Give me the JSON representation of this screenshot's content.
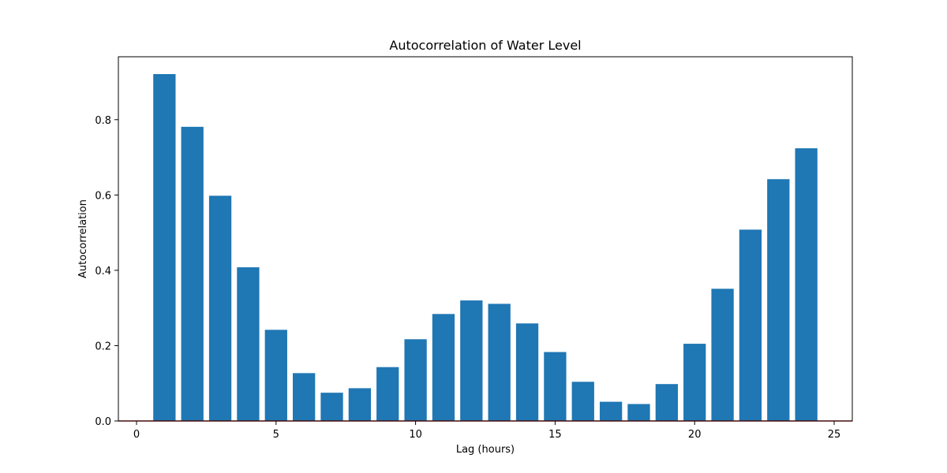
{
  "chart_data": {
    "type": "bar",
    "title": "Autocorrelation of Water Level",
    "xlabel": "Lag (hours)",
    "ylabel": "Autocorrelation",
    "x": [
      1,
      2,
      3,
      4,
      5,
      6,
      7,
      8,
      9,
      10,
      11,
      12,
      13,
      14,
      15,
      16,
      17,
      18,
      19,
      20,
      21,
      22,
      23,
      24
    ],
    "values": [
      0.921,
      0.781,
      0.598,
      0.408,
      0.242,
      0.127,
      0.075,
      0.087,
      0.143,
      0.217,
      0.284,
      0.32,
      0.311,
      0.259,
      0.183,
      0.104,
      0.051,
      0.045,
      0.098,
      0.205,
      0.351,
      0.508,
      0.642,
      0.724
    ],
    "xlim": [
      -0.65,
      25.65
    ],
    "ylim": [
      0,
      0.967
    ],
    "xticks": [
      0,
      5,
      10,
      15,
      20,
      25
    ],
    "xtick_labels": [
      "0",
      "5",
      "10",
      "15",
      "20",
      "25"
    ],
    "yticks": [
      0.0,
      0.2,
      0.4,
      0.6,
      0.8
    ],
    "ytick_labels": [
      "0.0",
      "0.2",
      "0.4",
      "0.6",
      "0.8"
    ],
    "bar_width": 0.8,
    "reference_line": {
      "y": 0,
      "color": "#d62728"
    },
    "grid": false,
    "colors": {
      "bar": "#1f77b4",
      "axis": "#000000",
      "background": "#ffffff"
    }
  }
}
